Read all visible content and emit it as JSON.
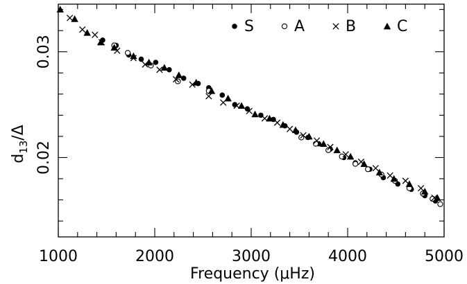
{
  "chart_data": {
    "type": "scatter",
    "xlabel": "Frequency (μHz)",
    "ylabel": "d13/Δ",
    "ylabel_main": "d",
    "ylabel_sub": "13",
    "ylabel_tail": "/Δ",
    "xlim": [
      1000,
      5000
    ],
    "ylim": [
      0.0125,
      0.0345
    ],
    "x_ticks": [
      1000,
      2000,
      3000,
      4000,
      5000
    ],
    "x_tick_labels": [
      "1000",
      "2000",
      "3000",
      "4000",
      "5000"
    ],
    "y_ticks": [
      0.02,
      0.03
    ],
    "y_tick_labels": [
      "0.02",
      "0.03"
    ],
    "grid": false,
    "legend_position": "top-right",
    "series": [
      {
        "name": "S",
        "marker": "filled-circle",
        "x": [
          1460,
          1600,
          1730,
          1860,
          2010,
          2150,
          2300,
          2450,
          2560,
          2700,
          2830,
          2960,
          3100,
          3230,
          3350,
          3470,
          3590,
          3700,
          3820,
          3960,
          4080,
          4230,
          4370,
          4520,
          4660,
          4800,
          4910
        ],
        "y": [
          0.0311,
          0.0306,
          0.0297,
          0.0293,
          0.029,
          0.0283,
          0.0275,
          0.027,
          0.0266,
          0.0259,
          0.025,
          0.0246,
          0.024,
          0.0236,
          0.023,
          0.0224,
          0.0219,
          0.0213,
          0.0208,
          0.02,
          0.0195,
          0.0189,
          0.0181,
          0.0175,
          0.017,
          0.0164,
          0.0159
        ]
      },
      {
        "name": "A",
        "marker": "open-circle",
        "x": [
          1580,
          1720,
          1960,
          2240,
          2560,
          3520,
          3670,
          3800,
          3940,
          4080,
          4210,
          4350,
          4490,
          4640,
          4780,
          4880,
          4960
        ],
        "y": [
          0.0306,
          0.0299,
          0.0287,
          0.0272,
          0.0263,
          0.0219,
          0.0213,
          0.0207,
          0.0201,
          0.0194,
          0.0189,
          0.0184,
          0.0178,
          0.0171,
          0.0166,
          0.0161,
          0.0156
        ]
      },
      {
        "name": "B",
        "marker": "cross",
        "x": [
          1120,
          1250,
          1380,
          1450,
          1610,
          1780,
          1900,
          2050,
          2220,
          2390,
          2560,
          2710,
          2850,
          2980,
          3140,
          3270,
          3400,
          3540,
          3680,
          3820,
          3980,
          4140,
          4290,
          4440,
          4600,
          4760,
          4900
        ],
        "y": [
          0.0332,
          0.0321,
          0.0316,
          0.0309,
          0.0301,
          0.0294,
          0.0288,
          0.0283,
          0.0274,
          0.0269,
          0.0258,
          0.0252,
          0.0249,
          0.0244,
          0.0237,
          0.0233,
          0.0227,
          0.0221,
          0.0216,
          0.021,
          0.0203,
          0.0196,
          0.019,
          0.0183,
          0.0178,
          0.0171,
          0.0162
        ]
      },
      {
        "name": "C",
        "marker": "filled-triangle",
        "x": [
          1020,
          1170,
          1300,
          1440,
          1580,
          1780,
          1940,
          2100,
          2250,
          2430,
          2590,
          2760,
          2900,
          3040,
          3190,
          3330,
          3460,
          3600,
          3750,
          3890,
          4030,
          4170,
          4330,
          4480,
          4640,
          4800,
          4930
        ],
        "y": [
          0.034,
          0.0331,
          0.0318,
          0.0309,
          0.0304,
          0.0296,
          0.029,
          0.0285,
          0.0278,
          0.0271,
          0.0263,
          0.0256,
          0.0249,
          0.0241,
          0.0237,
          0.0231,
          0.0226,
          0.022,
          0.0213,
          0.0207,
          0.0201,
          0.0194,
          0.0186,
          0.018,
          0.0175,
          0.0168,
          0.0162
        ]
      }
    ]
  }
}
